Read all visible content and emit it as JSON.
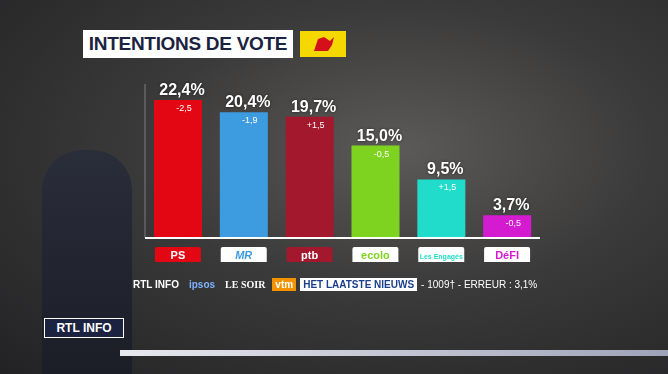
{
  "chart_data": {
    "type": "bar",
    "title": "INTENTIONS DE VOTE",
    "categories": [
      "PS",
      "MR",
      "ptb",
      "ecolo",
      "Les Engagés",
      "DéFI"
    ],
    "values": [
      22.4,
      20.4,
      19.7,
      15.0,
      9.5,
      3.7
    ],
    "value_labels": [
      "22,4%",
      "20,4%",
      "19,7%",
      "15,0%",
      "9,5%",
      "3,7%"
    ],
    "changes": [
      -2.5,
      -1.9,
      1.5,
      -0.5,
      1.5,
      -0.5
    ],
    "change_labels": [
      "-2,5",
      "-1,9",
      "+1,5",
      "-0,5",
      "+1,5",
      "-0,5"
    ],
    "colors": [
      "#e30613",
      "#3d9be0",
      "#a3182c",
      "#7ed321",
      "#22dccb",
      "#d41bd0"
    ],
    "ylim": [
      0,
      25
    ],
    "tick_labels": false,
    "data_labels": true,
    "grid": false
  },
  "sources": [
    "RTL INFO",
    "ipsos",
    "LE SOIR",
    "vtm",
    "HET LAATSTE NIEUWS"
  ],
  "source_note": "- 1009† - ERREUR : 3,1%",
  "logo": "RTL INFO"
}
